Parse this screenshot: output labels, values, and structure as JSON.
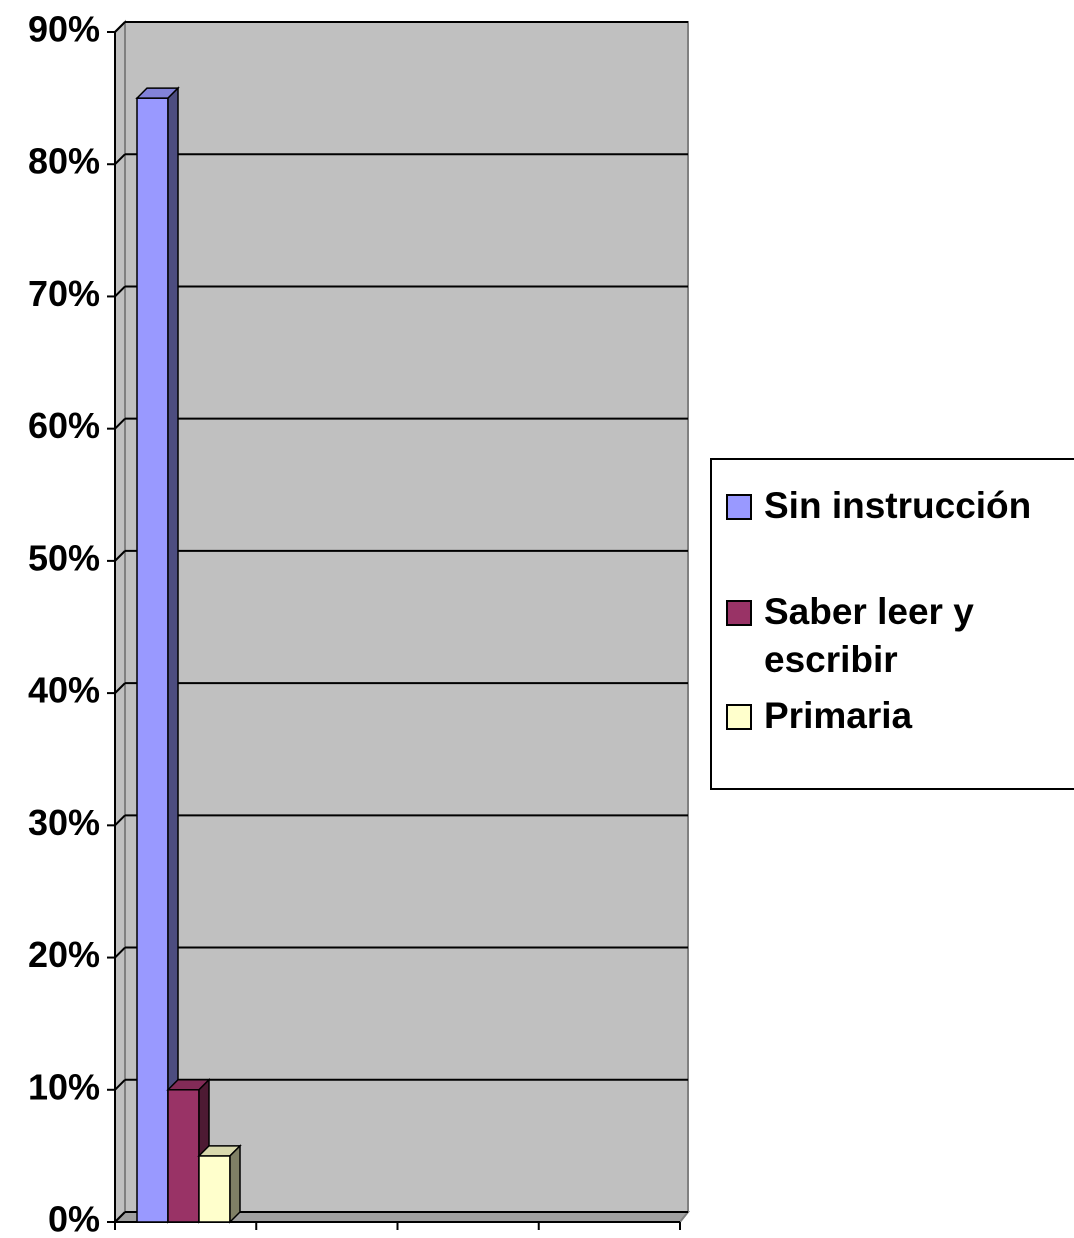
{
  "chart_data": {
    "type": "bar3d",
    "categories": [
      null
    ],
    "series": [
      {
        "name": "Sin instrucción",
        "color": "#9999ff",
        "values": [
          85
        ]
      },
      {
        "name": "Saber leer y escribir",
        "color": "#993366",
        "values": [
          10
        ]
      },
      {
        "name": "Primaria",
        "color": "#ffffcc",
        "values": [
          5
        ]
      }
    ],
    "ylim": [
      0,
      90
    ],
    "yticks": [
      {
        "value": 0,
        "label": "0%"
      },
      {
        "value": 10,
        "label": "10%"
      },
      {
        "value": 20,
        "label": "20%"
      },
      {
        "value": 30,
        "label": "30%"
      },
      {
        "value": 40,
        "label": "40%"
      },
      {
        "value": 50,
        "label": "50%"
      },
      {
        "value": 60,
        "label": "60%"
      },
      {
        "value": 70,
        "label": "70%"
      },
      {
        "value": 80,
        "label": "80%"
      },
      {
        "value": 90,
        "label": "90%"
      }
    ],
    "grid": true,
    "legend": "right"
  }
}
